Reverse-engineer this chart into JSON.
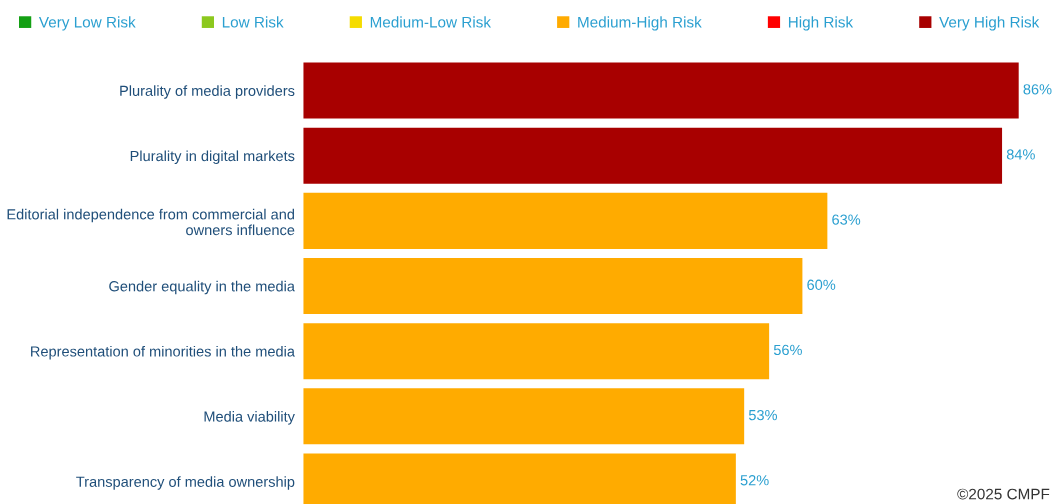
{
  "chart_data": {
    "type": "bar",
    "orientation": "horizontal",
    "legend": "top",
    "tick_labels": "y",
    "grid": false,
    "data_labels": true,
    "categories": [
      "Plurality of media providers",
      "Plurality in digital markets",
      "Editorial independence from commercial and\nowners influence",
      "Gender equality in the media",
      "Representation of minorities in the media",
      "Media viability",
      "Transparency of media ownership"
    ],
    "series": [
      {
        "name": "Very Low Risk",
        "color": "#14a014",
        "values": [
          null,
          null,
          null,
          null,
          null,
          null,
          null
        ],
        "value_labels": [
          null,
          null,
          null,
          null,
          null,
          null,
          null
        ]
      },
      {
        "name": "Low Risk",
        "color": "#8cc81e",
        "values": [
          null,
          null,
          null,
          null,
          null,
          null,
          null
        ],
        "value_labels": [
          null,
          null,
          null,
          null,
          null,
          null,
          null
        ]
      },
      {
        "name": "Medium-Low Risk",
        "color": "#f5dc00",
        "values": [
          null,
          null,
          null,
          null,
          null,
          null,
          null
        ],
        "value_labels": [
          null,
          null,
          null,
          null,
          null,
          null,
          null
        ]
      },
      {
        "name": "Medium-High Risk",
        "color": "#ffab00",
        "values": [
          null,
          null,
          63,
          60,
          56,
          53,
          52
        ],
        "value_labels": [
          null,
          null,
          "63%",
          "60%",
          "56%",
          "53%",
          "52%"
        ]
      },
      {
        "name": "High Risk",
        "color": "#ff0000",
        "values": [
          null,
          null,
          null,
          null,
          null,
          null,
          null
        ],
        "value_labels": [
          null,
          null,
          null,
          null,
          null,
          null,
          null
        ]
      },
      {
        "name": "Very High Risk",
        "color": "#a80000",
        "values": [
          86,
          84,
          null,
          null,
          null,
          null,
          null
        ],
        "value_labels": [
          "86%",
          "84%",
          null,
          null,
          null,
          null,
          null
        ]
      }
    ],
    "annotations": [
      "©2025 CMPF"
    ]
  }
}
